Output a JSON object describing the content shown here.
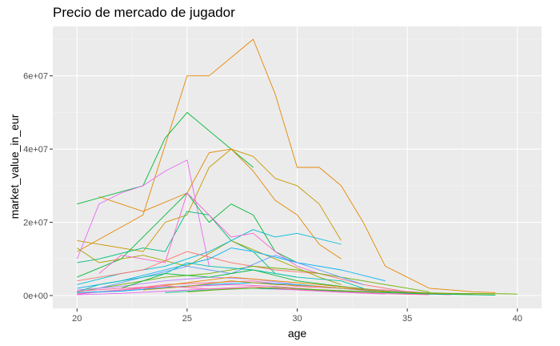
{
  "chart_data": {
    "type": "line",
    "title": "Precio de mercado de jugador",
    "xlabel": "age",
    "ylabel": "market_value_in_eur",
    "xlim": [
      18.9,
      41.1
    ],
    "ylim": [
      -3500000,
      73500000
    ],
    "x_ticks": [
      20,
      25,
      30,
      35,
      40
    ],
    "x_tick_labels": [
      "20",
      "25",
      "30",
      "35",
      "40"
    ],
    "y_ticks": [
      0,
      20000000,
      40000000,
      60000000
    ],
    "y_tick_labels": [
      "0e+00",
      "2e+07",
      "4e+07",
      "6e+07"
    ],
    "grid": true,
    "panel_background": "#EBEBEB",
    "legend": "none",
    "palette": [
      "#F8766D",
      "#E58700",
      "#C99800",
      "#A3A500",
      "#6BB100",
      "#00BA38",
      "#00BF7D",
      "#00C0AF",
      "#00BCD8",
      "#00B0F6",
      "#619CFF",
      "#B983FF",
      "#E76BF3",
      "#FD61D1",
      "#FF67A4"
    ],
    "series": [
      {
        "color": "#E58700",
        "x": [
          20,
          23,
          25,
          26,
          28,
          29,
          30,
          31,
          32,
          33,
          34,
          35,
          36,
          37,
          38,
          39
        ],
        "y": [
          12000000,
          22000000,
          60000000,
          60000000,
          70000000,
          55000000,
          35000000,
          35000000,
          30000000,
          20000000,
          8000000,
          5000000,
          2000000,
          1500000,
          1000000,
          800000
        ]
      },
      {
        "color": "#00BA38",
        "x": [
          20,
          23,
          24,
          25,
          26,
          27,
          28
        ],
        "y": [
          25000000,
          30000000,
          43000000,
          50000000,
          45000000,
          40000000,
          35000000
        ]
      },
      {
        "color": "#C99800",
        "x": [
          20,
          23,
          24,
          25,
          26,
          27,
          28,
          29,
          30,
          31,
          32
        ],
        "y": [
          15000000,
          12000000,
          20000000,
          22000000,
          35000000,
          40000000,
          38000000,
          32000000,
          30000000,
          25000000,
          15000000
        ]
      },
      {
        "color": "#E76BF3",
        "x": [
          20,
          21,
          22,
          23,
          24,
          25,
          26
        ],
        "y": [
          10000000,
          25000000,
          28000000,
          30000000,
          34000000,
          37000000,
          8000000
        ]
      },
      {
        "color": "#00BF7D",
        "x": [
          20,
          21,
          23,
          24,
          25,
          26,
          27,
          28,
          29,
          30
        ],
        "y": [
          9000000,
          10000000,
          13000000,
          12000000,
          23000000,
          22000000,
          15000000,
          12000000,
          6000000,
          5000000
        ]
      },
      {
        "color": "#E58700",
        "x": [
          21,
          23,
          25,
          26,
          27,
          28,
          29,
          30,
          31,
          32
        ],
        "y": [
          27000000,
          23000000,
          28000000,
          39000000,
          40000000,
          34000000,
          26000000,
          22000000,
          14000000,
          10000000
        ]
      },
      {
        "color": "#00BA38",
        "x": [
          20,
          22,
          24,
          25,
          26,
          27,
          28,
          29,
          30
        ],
        "y": [
          5000000,
          10000000,
          22000000,
          28000000,
          20000000,
          25000000,
          22000000,
          12000000,
          9000000
        ]
      },
      {
        "color": "#A3A500",
        "x": [
          20,
          21,
          23,
          25,
          27,
          29,
          31,
          32
        ],
        "y": [
          13000000,
          9000000,
          11000000,
          8000000,
          15000000,
          10000000,
          5000000,
          3000000
        ]
      },
      {
        "color": "#00BCD8",
        "x": [
          20,
          22,
          24,
          26,
          28,
          29,
          30,
          32
        ],
        "y": [
          3000000,
          6000000,
          8000000,
          12000000,
          18000000,
          16000000,
          17000000,
          14000000
        ]
      },
      {
        "color": "#FD61D1",
        "x": [
          21,
          22,
          24,
          25,
          27,
          28,
          29,
          30,
          31
        ],
        "y": [
          6000000,
          11000000,
          9000000,
          28000000,
          16000000,
          17000000,
          12000000,
          8000000,
          6000000
        ]
      },
      {
        "color": "#F8766D",
        "x": [
          20,
          23,
          25,
          27,
          29,
          31,
          33,
          35
        ],
        "y": [
          4000000,
          7000000,
          12000000,
          9000000,
          7000000,
          6000000,
          3000000,
          1000000
        ]
      },
      {
        "color": "#00B0F6",
        "x": [
          20,
          22,
          24,
          26,
          27,
          28,
          30,
          32,
          34
        ],
        "y": [
          2000000,
          4000000,
          7000000,
          10000000,
          13000000,
          12000000,
          9000000,
          7000000,
          4000000
        ]
      },
      {
        "color": "#6BB100",
        "x": [
          20,
          22,
          24,
          26,
          28,
          30,
          32,
          34,
          36
        ],
        "y": [
          1000000,
          3000000,
          5000000,
          6000000,
          8000000,
          7000000,
          5000000,
          3000000,
          1000000
        ]
      },
      {
        "color": "#619CFF",
        "x": [
          21,
          23,
          25,
          27,
          29,
          31,
          33
        ],
        "y": [
          2000000,
          5000000,
          8000000,
          6000000,
          11000000,
          7000000,
          3000000
        ]
      },
      {
        "color": "#B983FF",
        "x": [
          20,
          22,
          24,
          26,
          28,
          30,
          32,
          34
        ],
        "y": [
          1500000,
          2500000,
          4000000,
          5000000,
          4500000,
          3000000,
          2000000,
          800000
        ]
      },
      {
        "color": "#00C0AF",
        "x": [
          20,
          21,
          22,
          24,
          25,
          26,
          28,
          30,
          32,
          33
        ],
        "y": [
          1000000,
          3000000,
          4000000,
          6000000,
          9000000,
          8000000,
          7000000,
          5000000,
          4000000,
          2000000
        ]
      },
      {
        "color": "#FF67A4",
        "x": [
          20,
          22,
          24,
          26,
          28,
          30,
          32,
          34,
          36,
          38
        ],
        "y": [
          500000,
          1500000,
          3000000,
          3500000,
          4000000,
          2500000,
          2000000,
          1500000,
          700000,
          300000
        ]
      },
      {
        "color": "#00BA38",
        "x": [
          22,
          24,
          26,
          28,
          30,
          32,
          34,
          36
        ],
        "y": [
          2000000,
          6000000,
          5000000,
          7000000,
          4000000,
          2500000,
          1200000,
          500000
        ]
      },
      {
        "color": "#E58700",
        "x": [
          21,
          23,
          25,
          27,
          29,
          31,
          33,
          35
        ],
        "y": [
          1000000,
          2000000,
          3500000,
          5000000,
          4000000,
          3000000,
          1800000,
          700000
        ]
      },
      {
        "color": "#FD61D1",
        "x": [
          20,
          21,
          23,
          25,
          27,
          29,
          31,
          33,
          35,
          37
        ],
        "y": [
          300000,
          1000000,
          2000000,
          2500000,
          3000000,
          2500000,
          1500000,
          1000000,
          500000,
          200000
        ]
      },
      {
        "color": "#00B0F6",
        "x": [
          20,
          22,
          24,
          26,
          28,
          30,
          32,
          34,
          36,
          38
        ],
        "y": [
          800000,
          1200000,
          2200000,
          3000000,
          3500000,
          3000000,
          2000000,
          1200000,
          600000,
          300000
        ]
      },
      {
        "color": "#C99800",
        "x": [
          23,
          25,
          27,
          29,
          31,
          33,
          35,
          37,
          39
        ],
        "y": [
          1500000,
          2500000,
          4000000,
          3000000,
          2500000,
          1500000,
          800000,
          400000,
          200000
        ]
      },
      {
        "color": "#E76BF3",
        "x": [
          20,
          22,
          24,
          26,
          28,
          30,
          32,
          34
        ],
        "y": [
          200000,
          600000,
          1200000,
          1800000,
          2000000,
          1500000,
          900000,
          400000
        ]
      },
      {
        "color": "#00BF7D",
        "x": [
          24,
          26,
          28,
          30,
          32,
          34,
          36,
          38,
          39
        ],
        "y": [
          800000,
          1500000,
          2000000,
          1700000,
          1200000,
          800000,
          400000,
          200000,
          100000
        ]
      },
      {
        "color": "#FF67A4",
        "x": [
          20,
          22,
          24,
          26,
          28,
          30,
          32,
          34,
          36
        ],
        "y": [
          1200000,
          2000000,
          2600000,
          1800000,
          2400000,
          1600000,
          1000000,
          500000,
          200000
        ]
      },
      {
        "color": "#6BB100",
        "x": [
          25,
          27,
          29,
          31,
          33,
          35,
          37,
          39,
          40
        ],
        "y": [
          1000000,
          1800000,
          2200000,
          1600000,
          1100000,
          900000,
          600000,
          500000,
          400000
        ]
      }
    ]
  }
}
